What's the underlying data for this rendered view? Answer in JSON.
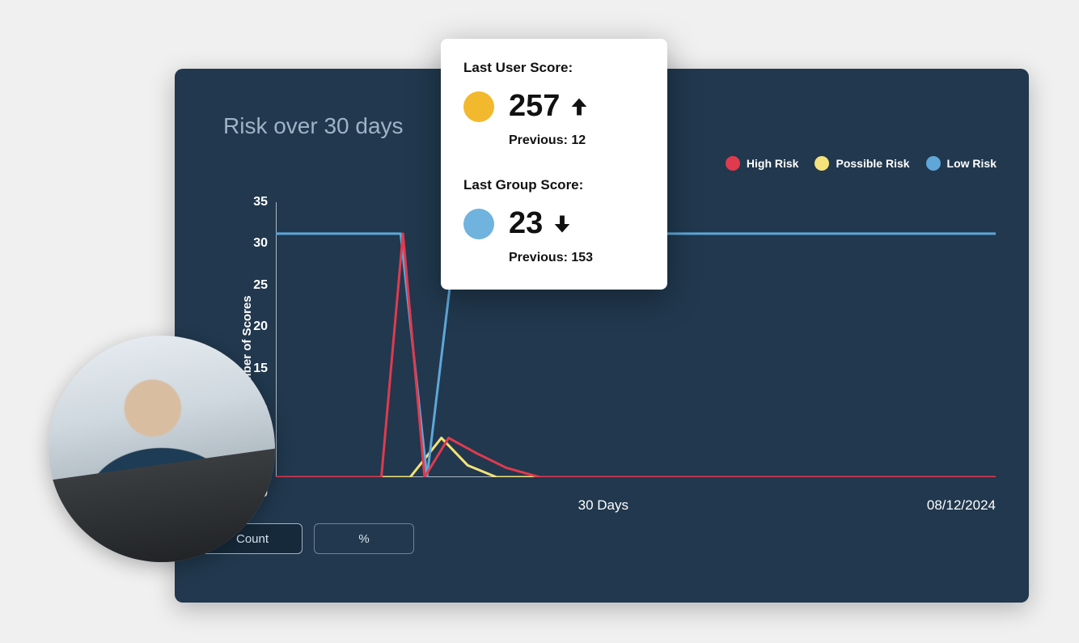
{
  "panel": {
    "title": "Risk over 30 days",
    "background_color": "#21384e",
    "title_color": "#9fb3c5"
  },
  "legend": [
    {
      "label": "High Risk",
      "color": "#e03a4e"
    },
    {
      "label": "Possible Risk",
      "color": "#f4e27a"
    },
    {
      "label": "Low Risk",
      "color": "#5ea7d8"
    }
  ],
  "chart": {
    "type": "line",
    "y_label": "Number of Scores",
    "ylim": [
      0,
      35
    ],
    "ytick_step": 5,
    "yticks": [
      35,
      30,
      25,
      20,
      15,
      10,
      5,
      0
    ],
    "x_label_center": "30 Days",
    "x_label_right": "08/12/2024",
    "x_days": 30,
    "line_width": 3,
    "axis_color": "#aeb9c3",
    "tick_text_color": "#ffffff",
    "series": {
      "high_risk": {
        "color": "#e03a4e",
        "points": [
          [
            0,
            0
          ],
          [
            4,
            0
          ],
          [
            4.4,
            0
          ],
          [
            5.3,
            31
          ],
          [
            6.2,
            0
          ],
          [
            7.2,
            5
          ],
          [
            8.4,
            3
          ],
          [
            9.6,
            1.2
          ],
          [
            11,
            0
          ],
          [
            30,
            0
          ]
        ]
      },
      "possible_risk": {
        "color": "#f4e27a",
        "points": [
          [
            0,
            0
          ],
          [
            5.6,
            0
          ],
          [
            6.9,
            5
          ],
          [
            8.0,
            1.5
          ],
          [
            9.2,
            0
          ],
          [
            30,
            0
          ]
        ]
      },
      "low_risk": {
        "color": "#5ea7d8",
        "points": [
          [
            0,
            31
          ],
          [
            4.2,
            31
          ],
          [
            5.2,
            31
          ],
          [
            6.3,
            0
          ],
          [
            7.4,
            28
          ],
          [
            8.8,
            30.5
          ],
          [
            11,
            31
          ],
          [
            30,
            31
          ]
        ]
      }
    }
  },
  "toggles": {
    "count_label": "Count",
    "percent_label": "%",
    "active": "count"
  },
  "tooltip": {
    "user": {
      "title": "Last User Score:",
      "value": "257",
      "direction": "up",
      "dot_color": "#f2b92e",
      "previous_label": "Previous: 12"
    },
    "group": {
      "title": "Last Group Score:",
      "value": "23",
      "direction": "down",
      "dot_color": "#6fb3de",
      "previous_label": "Previous: 153"
    }
  }
}
